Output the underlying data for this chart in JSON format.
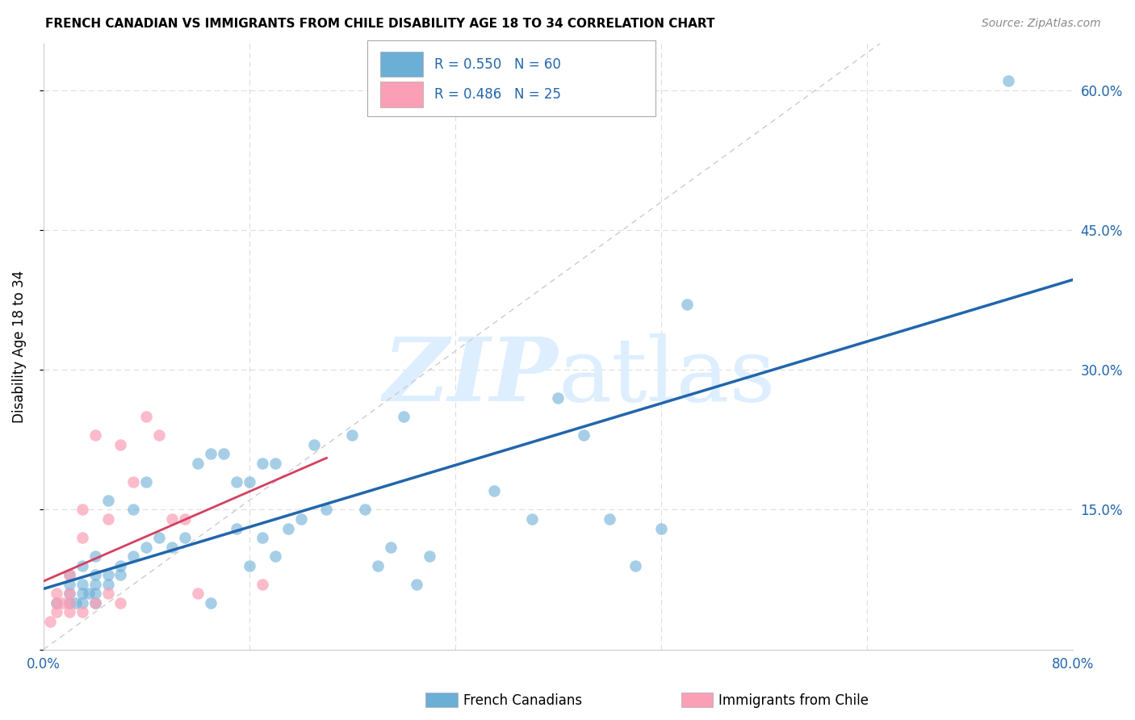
{
  "title": "FRENCH CANADIAN VS IMMIGRANTS FROM CHILE DISABILITY AGE 18 TO 34 CORRELATION CHART",
  "source": "Source: ZipAtlas.com",
  "ylabel": "Disability Age 18 to 34",
  "xlim": [
    0.0,
    0.8
  ],
  "ylim": [
    0.0,
    0.65
  ],
  "ytick_labels": [
    "",
    "15.0%",
    "30.0%",
    "45.0%",
    "60.0%"
  ],
  "ytick_vals": [
    0.0,
    0.15,
    0.3,
    0.45,
    0.6
  ],
  "r_blue": 0.55,
  "n_blue": 60,
  "r_pink": 0.486,
  "n_pink": 25,
  "legend_label_blue": "French Canadians",
  "legend_label_pink": "Immigrants from Chile",
  "blue_color": "#6baed6",
  "pink_color": "#fa9fb5",
  "blue_line_color": "#2166ac",
  "pink_line_color": "#d44060",
  "diagonal_color": "#cccccc",
  "grid_color": "#dddddd",
  "watermark_color": "#ddeeff",
  "blue_scatter_x": [
    0.01,
    0.02,
    0.02,
    0.02,
    0.02,
    0.025,
    0.03,
    0.03,
    0.03,
    0.03,
    0.035,
    0.04,
    0.04,
    0.04,
    0.04,
    0.04,
    0.05,
    0.05,
    0.05,
    0.06,
    0.06,
    0.07,
    0.07,
    0.08,
    0.08,
    0.09,
    0.1,
    0.11,
    0.12,
    0.13,
    0.13,
    0.14,
    0.15,
    0.15,
    0.16,
    0.16,
    0.17,
    0.17,
    0.18,
    0.18,
    0.19,
    0.2,
    0.21,
    0.22,
    0.24,
    0.25,
    0.26,
    0.27,
    0.28,
    0.29,
    0.3,
    0.35,
    0.38,
    0.4,
    0.42,
    0.44,
    0.46,
    0.48,
    0.5,
    0.75
  ],
  "blue_scatter_y": [
    0.05,
    0.05,
    0.06,
    0.07,
    0.08,
    0.05,
    0.05,
    0.06,
    0.07,
    0.09,
    0.06,
    0.05,
    0.06,
    0.07,
    0.08,
    0.1,
    0.07,
    0.08,
    0.16,
    0.08,
    0.09,
    0.1,
    0.15,
    0.11,
    0.18,
    0.12,
    0.11,
    0.12,
    0.2,
    0.21,
    0.05,
    0.21,
    0.13,
    0.18,
    0.09,
    0.18,
    0.12,
    0.2,
    0.1,
    0.2,
    0.13,
    0.14,
    0.22,
    0.15,
    0.23,
    0.15,
    0.09,
    0.11,
    0.25,
    0.07,
    0.1,
    0.17,
    0.14,
    0.27,
    0.23,
    0.14,
    0.09,
    0.13,
    0.37,
    0.61
  ],
  "pink_scatter_x": [
    0.005,
    0.01,
    0.01,
    0.01,
    0.015,
    0.02,
    0.02,
    0.02,
    0.02,
    0.03,
    0.03,
    0.03,
    0.04,
    0.04,
    0.05,
    0.05,
    0.06,
    0.06,
    0.07,
    0.08,
    0.09,
    0.1,
    0.11,
    0.12,
    0.17
  ],
  "pink_scatter_y": [
    0.03,
    0.04,
    0.05,
    0.06,
    0.05,
    0.04,
    0.05,
    0.06,
    0.08,
    0.04,
    0.12,
    0.15,
    0.05,
    0.23,
    0.14,
    0.06,
    0.05,
    0.22,
    0.18,
    0.25,
    0.23,
    0.14,
    0.14,
    0.06,
    0.07
  ]
}
